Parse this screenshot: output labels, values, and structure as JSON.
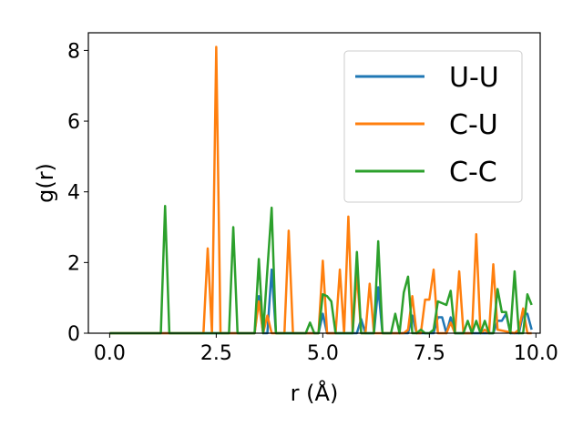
{
  "chart_data": {
    "type": "line",
    "title": "",
    "xlabel": "r (Å)",
    "ylabel": "g(r)",
    "xlim": [
      -0.5,
      10.1
    ],
    "ylim": [
      0,
      8.5
    ],
    "xticks": [
      0.0,
      2.5,
      5.0,
      7.5,
      10.0
    ],
    "xtick_labels": [
      "0.0",
      "2.5",
      "5.0",
      "7.5",
      "10.0"
    ],
    "yticks": [
      0,
      2,
      4,
      6,
      8
    ],
    "ytick_labels": [
      "0",
      "2",
      "4",
      "6",
      "8"
    ],
    "grid": false,
    "legend_position": "top-right",
    "series": [
      {
        "name": "U-U",
        "color": "#1f77b4",
        "x": [
          0.0,
          3.4,
          3.5,
          3.6,
          3.7,
          3.8,
          3.9,
          4.0,
          4.9,
          5.0,
          5.1,
          5.8,
          5.9,
          6.0,
          6.2,
          6.3,
          6.4,
          7.0,
          7.1,
          7.2,
          7.6,
          7.7,
          7.8,
          7.9,
          8.0,
          8.1,
          8.2,
          9.0,
          9.1,
          9.2,
          9.3,
          9.4,
          9.5,
          9.6,
          9.7,
          9.8,
          9.9
        ],
        "y": [
          0.0,
          0.0,
          1.05,
          0.0,
          0.0,
          1.8,
          0.0,
          0.0,
          0.0,
          0.55,
          0.0,
          0.0,
          0.4,
          0.0,
          0.0,
          1.3,
          0.0,
          0.0,
          0.5,
          0.0,
          0.0,
          0.45,
          0.45,
          0.0,
          0.45,
          0.0,
          0.0,
          0.0,
          0.35,
          0.35,
          0.55,
          0.0,
          0.0,
          0.0,
          0.55,
          0.55,
          0.1
        ]
      },
      {
        "name": "C-U",
        "color": "#ff7f0e",
        "x": [
          0.0,
          2.2,
          2.3,
          2.4,
          2.5,
          2.6,
          3.4,
          3.5,
          3.6,
          3.7,
          3.8,
          3.9,
          4.1,
          4.2,
          4.3,
          4.9,
          5.0,
          5.1,
          5.3,
          5.4,
          5.5,
          5.6,
          5.7,
          5.8,
          5.9,
          6.0,
          6.1,
          6.2,
          6.9,
          7.0,
          7.1,
          7.2,
          7.3,
          7.4,
          7.5,
          7.6,
          7.7,
          7.8,
          7.9,
          8.0,
          8.1,
          8.2,
          8.3,
          8.4,
          8.5,
          8.6,
          8.7,
          8.8,
          8.9,
          9.0,
          9.1,
          9.5,
          9.6,
          9.7,
          9.8,
          9.9
        ],
        "y": [
          0.0,
          0.0,
          2.4,
          0.0,
          8.1,
          0.0,
          0.0,
          0.9,
          0.0,
          0.5,
          0.0,
          0.0,
          0.0,
          2.9,
          0.0,
          0.0,
          2.05,
          0.0,
          0.0,
          1.8,
          0.0,
          3.3,
          0.0,
          1.7,
          0.0,
          0.0,
          1.4,
          0.0,
          0.0,
          0.1,
          1.05,
          0.0,
          0.0,
          0.95,
          0.95,
          1.8,
          0.0,
          0.0,
          0.0,
          0.3,
          0.0,
          1.75,
          0.0,
          0.0,
          0.0,
          2.8,
          0.0,
          0.1,
          0.0,
          1.95,
          0.1,
          0.0,
          0.1,
          0.7,
          0.0,
          0.0
        ]
      },
      {
        "name": "C-C",
        "color": "#2ca02c",
        "x": [
          0.0,
          1.2,
          1.3,
          1.4,
          2.8,
          2.9,
          3.0,
          3.4,
          3.5,
          3.6,
          3.7,
          3.8,
          3.9,
          4.6,
          4.7,
          4.8,
          4.9,
          5.0,
          5.1,
          5.2,
          5.3,
          5.4,
          5.5,
          5.6,
          5.7,
          5.8,
          5.9,
          6.0,
          6.1,
          6.2,
          6.3,
          6.4,
          6.5,
          6.6,
          6.7,
          6.8,
          6.9,
          7.0,
          7.1,
          7.2,
          7.3,
          7.4,
          7.5,
          7.6,
          7.7,
          7.8,
          7.9,
          8.0,
          8.1,
          8.2,
          8.3,
          8.4,
          8.5,
          8.6,
          8.7,
          8.8,
          8.9,
          9.0,
          9.1,
          9.2,
          9.3,
          9.4,
          9.5,
          9.6,
          9.7,
          9.8,
          9.9
        ],
        "y": [
          0.0,
          0.0,
          3.6,
          0.0,
          0.0,
          3.0,
          0.0,
          0.0,
          2.1,
          0.0,
          1.8,
          3.55,
          0.0,
          0.0,
          0.3,
          0.0,
          0.0,
          1.1,
          1.05,
          0.9,
          0.0,
          0.0,
          0.0,
          0.0,
          0.0,
          2.3,
          0.0,
          0.0,
          0.0,
          0.0,
          2.6,
          0.0,
          0.0,
          0.0,
          0.55,
          0.0,
          1.15,
          1.6,
          0.0,
          0.0,
          0.1,
          0.0,
          0.0,
          0.1,
          0.9,
          0.85,
          0.8,
          1.2,
          0.0,
          0.0,
          0.0,
          0.35,
          0.0,
          0.35,
          0.0,
          0.35,
          0.0,
          0.0,
          1.25,
          0.6,
          0.6,
          0.0,
          1.75,
          0.0,
          0.0,
          1.1,
          0.8
        ]
      }
    ]
  }
}
